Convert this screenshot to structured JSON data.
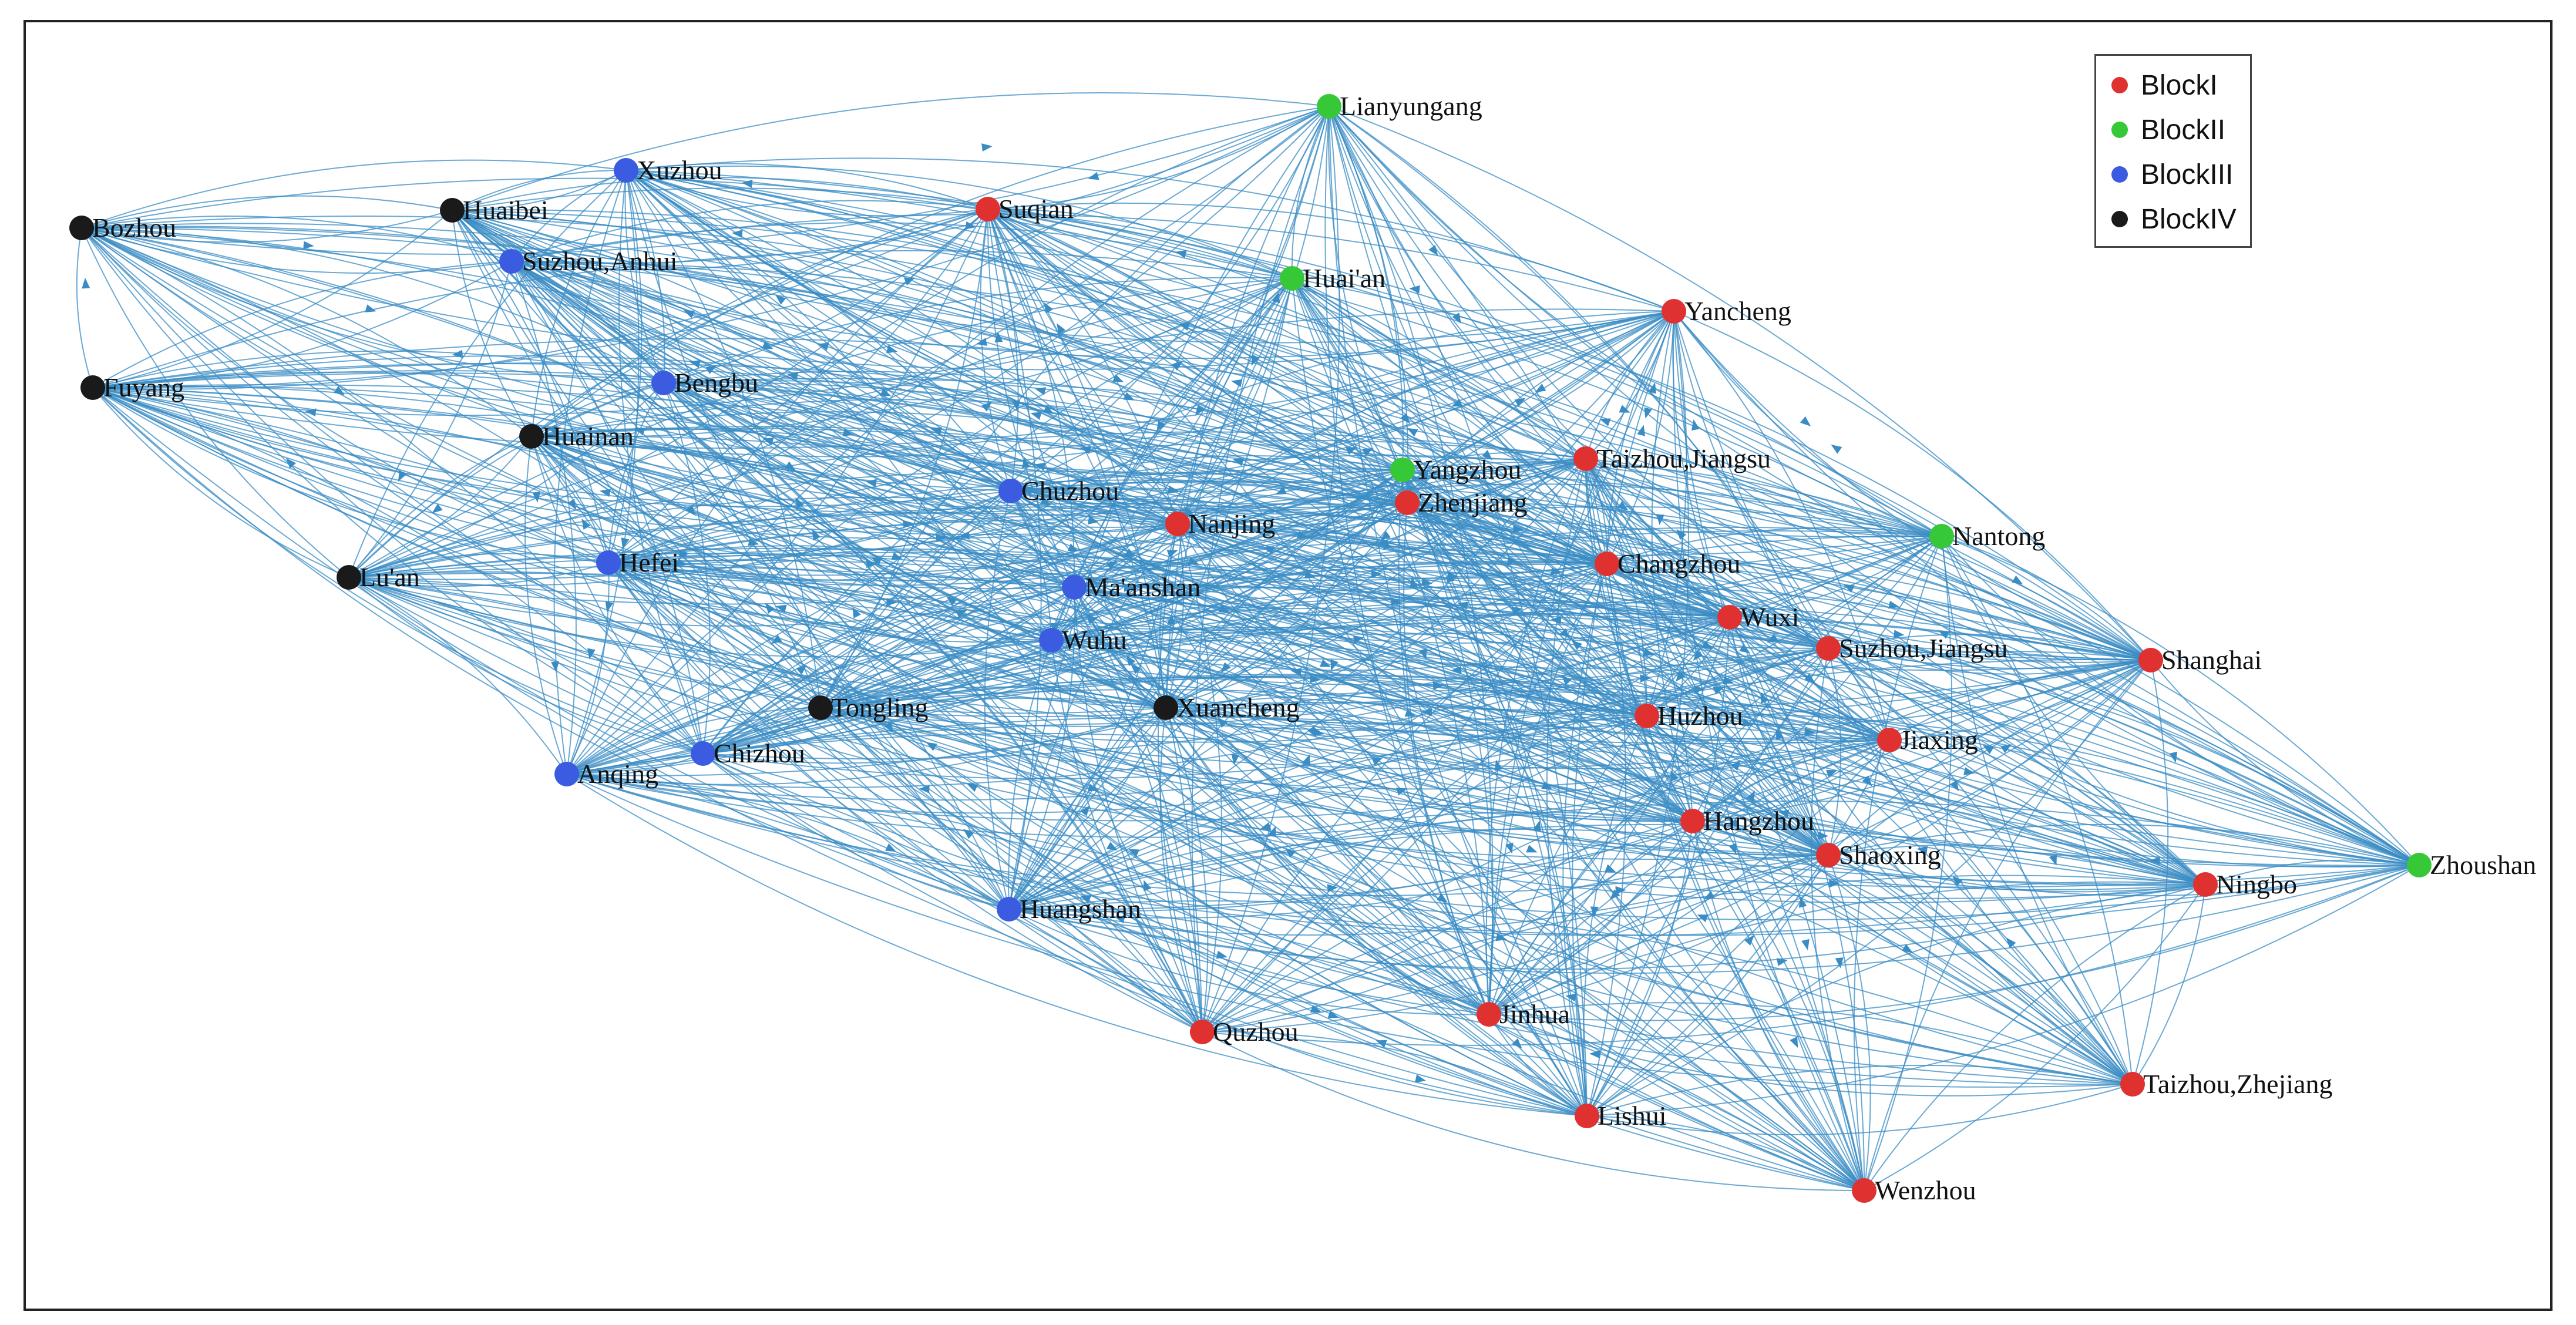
{
  "legend": {
    "items": [
      {
        "label": "BlockI",
        "color": "#e03131"
      },
      {
        "label": "BlockII",
        "color": "#37c837"
      },
      {
        "label": "BlockIII",
        "color": "#3b5be0"
      },
      {
        "label": "BlockIV",
        "color": "#1a1a1a"
      }
    ]
  },
  "edge_color": "#3a8cc4",
  "nodes": [
    {
      "id": "Lianyungang",
      "block": 1
    },
    {
      "id": "Xuzhou",
      "block": 2
    },
    {
      "id": "Huaibei",
      "block": 3
    },
    {
      "id": "Bozhou",
      "block": 3
    },
    {
      "id": "Suqian",
      "block": 0
    },
    {
      "id": "Suzhou,Anhui",
      "block": 2
    },
    {
      "id": "Huai'an",
      "block": 1
    },
    {
      "id": "Yancheng",
      "block": 0
    },
    {
      "id": "Fuyang",
      "block": 3
    },
    {
      "id": "Bengbu",
      "block": 2
    },
    {
      "id": "Huainan",
      "block": 3
    },
    {
      "id": "Taizhou,Jiangsu",
      "block": 0
    },
    {
      "id": "Yangzhou",
      "block": 1
    },
    {
      "id": "Zhenjiang",
      "block": 0
    },
    {
      "id": "Chuzhou",
      "block": 2
    },
    {
      "id": "Nanjing",
      "block": 0
    },
    {
      "id": "Nantong",
      "block": 1
    },
    {
      "id": "Lu'an",
      "block": 3
    },
    {
      "id": "Hefei",
      "block": 2
    },
    {
      "id": "Changzhou",
      "block": 0
    },
    {
      "id": "Ma'anshan",
      "block": 2
    },
    {
      "id": "Wuxi",
      "block": 0
    },
    {
      "id": "Wuhu",
      "block": 2
    },
    {
      "id": "Suzhou,Jiangsu",
      "block": 0
    },
    {
      "id": "Shanghai",
      "block": 0
    },
    {
      "id": "Tongling",
      "block": 3
    },
    {
      "id": "Xuancheng",
      "block": 3
    },
    {
      "id": "Huzhou",
      "block": 0
    },
    {
      "id": "Jiaxing",
      "block": 0
    },
    {
      "id": "Chizhou",
      "block": 2
    },
    {
      "id": "Anqing",
      "block": 2
    },
    {
      "id": "Hangzhou",
      "block": 0
    },
    {
      "id": "Shaoxing",
      "block": 0
    },
    {
      "id": "Zhoushan",
      "block": 1
    },
    {
      "id": "Ningbo",
      "block": 0
    },
    {
      "id": "Huangshan",
      "block": 2
    },
    {
      "id": "Quzhou",
      "block": 0
    },
    {
      "id": "Jinhua",
      "block": 0
    },
    {
      "id": "Taizhou,Zhejiang",
      "block": 0
    },
    {
      "id": "Lishui",
      "block": 0
    },
    {
      "id": "Wenzhou",
      "block": 0
    }
  ]
}
